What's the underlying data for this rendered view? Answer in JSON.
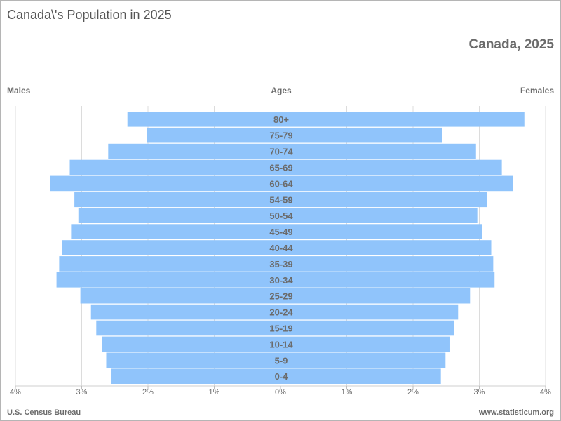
{
  "page_title": "Canada\\'s Population in 2025",
  "footer": {
    "source": "U.S. Census Bureau",
    "site": "www.statisticum.org"
  },
  "colors": {
    "bar": "#90c4fb",
    "grid": "#dcdcdc",
    "text": "#6b6b6b"
  },
  "chart_data": {
    "type": "bar",
    "orientation": "horizontal",
    "title": "Canada, 2025",
    "left_label": "Males",
    "center_label": "Ages",
    "right_label": "Females",
    "unit": "%",
    "xlim": [
      -4,
      4
    ],
    "x_ticks": [
      {
        "value": -4,
        "label": "4%"
      },
      {
        "value": -3,
        "label": "3%"
      },
      {
        "value": -2,
        "label": "2%"
      },
      {
        "value": -1,
        "label": "1%"
      },
      {
        "value": 0,
        "label": "0%"
      },
      {
        "value": 1,
        "label": "1%"
      },
      {
        "value": 2,
        "label": "2%"
      },
      {
        "value": 3,
        "label": "3%"
      },
      {
        "value": 4,
        "label": "4%"
      }
    ],
    "categories": [
      "80+",
      "75-79",
      "70-74",
      "65-69",
      "60-64",
      "54-59",
      "50-54",
      "45-49",
      "40-44",
      "35-39",
      "30-34",
      "25-29",
      "20-24",
      "15-19",
      "10-14",
      "5-9",
      "0-4"
    ],
    "series": [
      {
        "name": "Males",
        "values": [
          2.31,
          2.02,
          2.6,
          3.18,
          3.48,
          3.11,
          3.05,
          3.16,
          3.3,
          3.34,
          3.38,
          3.02,
          2.86,
          2.78,
          2.69,
          2.63,
          2.55
        ]
      },
      {
        "name": "Females",
        "values": [
          3.68,
          2.44,
          2.95,
          3.34,
          3.51,
          3.12,
          2.97,
          3.04,
          3.18,
          3.21,
          3.23,
          2.86,
          2.68,
          2.62,
          2.55,
          2.49,
          2.42
        ]
      }
    ]
  }
}
